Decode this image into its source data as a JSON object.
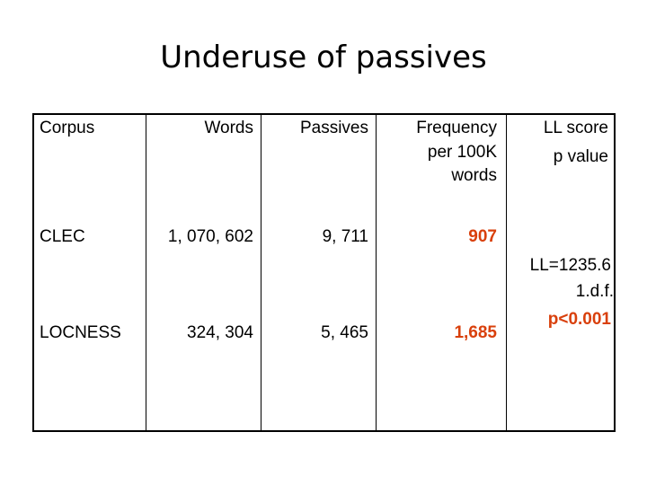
{
  "header": {
    "title": "Underuse of passives"
  },
  "table": {
    "columns": [
      [
        "Corpus"
      ],
      [
        "Words"
      ],
      [
        "Passives"
      ],
      [
        "Frequency",
        "per 100K",
        "words"
      ],
      [
        "LL score",
        "p value"
      ]
    ],
    "rows": [
      [
        "CLEC",
        "1, 070, 602",
        "9, 711",
        "907"
      ],
      [
        "LOCNESS",
        "324, 304",
        "5, 465",
        "1,685"
      ]
    ],
    "ll_result": [
      "LL=1235.6",
      "1.d.f.",
      "p<0.001"
    ]
  }
}
